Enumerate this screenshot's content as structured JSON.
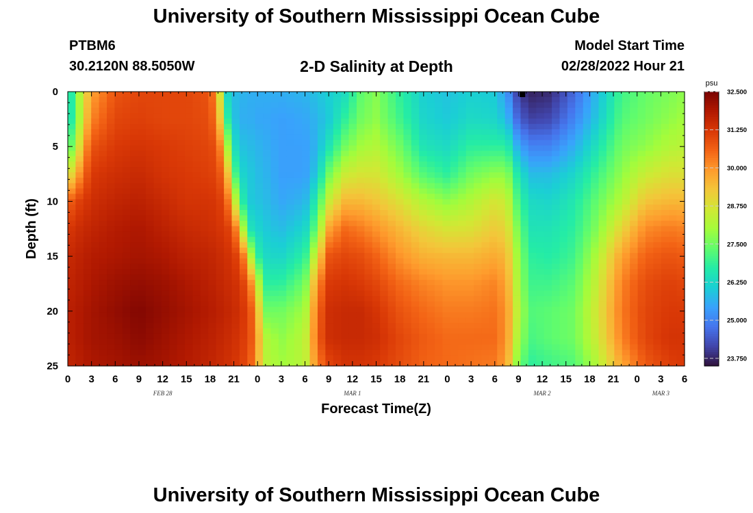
{
  "header": {
    "title": "University of Southern Mississippi Ocean Cube",
    "station_id": "PTBM6",
    "station_coords": "30.2120N  88.5050W",
    "plot_title": "2-D Salinity at Depth",
    "start_label": "Model Start Time",
    "start_value": "02/28/2022 Hour 21"
  },
  "footer": {
    "title": "University of Southern Mississippi Ocean Cube"
  },
  "chart_data": {
    "type": "heatmap",
    "title": "2-D Salinity at Depth",
    "xlabel": "Forecast Time(Z)",
    "ylabel": "Depth (ft)",
    "x_hours_from_feb28_00z": [
      0,
      78
    ],
    "x_tick_labels": [
      "0",
      "3",
      "6",
      "9",
      "12",
      "15",
      "18",
      "21",
      "0",
      "3",
      "6",
      "9",
      "12",
      "15",
      "18",
      "21",
      "0",
      "3",
      "6",
      "9",
      "12",
      "15",
      "18",
      "21",
      "0",
      "3",
      "6"
    ],
    "date_labels": [
      {
        "label": "FEB 28",
        "hour": 12
      },
      {
        "label": "MAR 1",
        "hour": 36
      },
      {
        "label": "MAR 2",
        "hour": 60
      },
      {
        "label": "MAR 3",
        "hour": 75
      }
    ],
    "ylim": [
      0,
      25
    ],
    "y_ticks": [
      0,
      5,
      10,
      15,
      20,
      25
    ],
    "y_inverted": true,
    "colorbar": {
      "unit": "psu",
      "range": [
        23.5,
        32.5
      ],
      "labels": [
        "32.500",
        "31.250",
        "30.000",
        "28.750",
        "27.500",
        "26.250",
        "25.000",
        "23.750"
      ],
      "colors": [
        "#30123b",
        "#4145ab",
        "#4675ed",
        "#39a2fc",
        "#1bcfd4",
        "#24eca6",
        "#61fc6c",
        "#a4fc3b",
        "#d1e834",
        "#f3c63a",
        "#fe9b2d",
        "#f36315",
        "#d93806",
        "#b11901",
        "#7a0402"
      ]
    },
    "surface_marker_hour": 57.5,
    "profile_depths_ft": [
      0,
      2.5,
      5,
      7.5,
      10,
      12.5,
      15,
      17.5,
      20,
      22.5,
      25
    ],
    "profiles": [
      {
        "hour": 0,
        "salinity": [
          26.0,
          26.2,
          27.0,
          28.5,
          30.5,
          31.2,
          31.5,
          31.6,
          31.7,
          31.7,
          31.6
        ]
      },
      {
        "hour": 1,
        "salinity": [
          27.5,
          27.2,
          28.0,
          29.5,
          31.0,
          31.4,
          31.6,
          31.7,
          31.8,
          31.8,
          31.7
        ]
      },
      {
        "hour": 2,
        "salinity": [
          28.8,
          29.0,
          29.8,
          30.5,
          31.2,
          31.5,
          31.7,
          31.8,
          31.9,
          31.9,
          31.8
        ]
      },
      {
        "hour": 3,
        "salinity": [
          29.8,
          30.2,
          30.8,
          31.2,
          31.4,
          31.6,
          31.8,
          31.9,
          32.0,
          32.0,
          31.9
        ]
      },
      {
        "hour": 6,
        "salinity": [
          30.8,
          31.0,
          31.2,
          31.4,
          31.6,
          31.8,
          31.9,
          32.1,
          32.2,
          32.1,
          32.0
        ]
      },
      {
        "hour": 9,
        "salinity": [
          31.0,
          31.1,
          31.3,
          31.5,
          31.7,
          31.9,
          32.0,
          32.2,
          32.4,
          32.3,
          32.1
        ]
      },
      {
        "hour": 12,
        "salinity": [
          31.0,
          31.0,
          31.2,
          31.3,
          31.5,
          31.7,
          31.9,
          32.1,
          32.2,
          32.1,
          32.0
        ]
      },
      {
        "hour": 15,
        "salinity": [
          31.0,
          31.0,
          31.1,
          31.2,
          31.3,
          31.5,
          31.7,
          31.9,
          32.0,
          31.9,
          31.8
        ]
      },
      {
        "hour": 18,
        "salinity": [
          30.8,
          30.9,
          31.0,
          31.1,
          31.3,
          31.4,
          31.6,
          31.7,
          31.8,
          31.7,
          31.6
        ]
      },
      {
        "hour": 19,
        "salinity": [
          29.5,
          30.0,
          30.8,
          31.0,
          31.2,
          31.3,
          31.5,
          31.6,
          31.7,
          31.6,
          31.5
        ]
      },
      {
        "hour": 20,
        "salinity": [
          26.3,
          27.0,
          28.5,
          30.0,
          30.9,
          31.2,
          31.4,
          31.5,
          31.6,
          31.5,
          31.4
        ]
      },
      {
        "hour": 21,
        "salinity": [
          25.8,
          25.9,
          26.4,
          27.3,
          28.8,
          30.8,
          31.2,
          31.4,
          31.5,
          31.4,
          31.3
        ]
      },
      {
        "hour": 22,
        "salinity": [
          25.7,
          25.6,
          25.9,
          26.2,
          26.8,
          28.5,
          30.8,
          31.2,
          31.3,
          31.2,
          31.1
        ]
      },
      {
        "hour": 23,
        "salinity": [
          25.6,
          25.6,
          25.8,
          26.0,
          26.0,
          26.5,
          28.5,
          30.5,
          31.0,
          31.0,
          30.8
        ]
      },
      {
        "hour": 24,
        "salinity": [
          25.6,
          25.5,
          25.7,
          25.8,
          25.9,
          26.2,
          26.8,
          28.5,
          29.5,
          29.8,
          29.6
        ]
      },
      {
        "hour": 25,
        "salinity": [
          25.6,
          25.5,
          25.6,
          25.7,
          25.8,
          26.0,
          26.3,
          26.8,
          27.5,
          28.2,
          28.3
        ]
      },
      {
        "hour": 27,
        "salinity": [
          25.6,
          25.4,
          25.4,
          25.4,
          25.5,
          25.8,
          26.2,
          26.8,
          27.5,
          27.8,
          28.0
        ]
      },
      {
        "hour": 30,
        "salinity": [
          25.7,
          25.5,
          25.4,
          25.4,
          25.7,
          26.2,
          26.8,
          27.5,
          28.0,
          28.3,
          28.3
        ]
      },
      {
        "hour": 31.5,
        "salinity": [
          25.9,
          25.7,
          25.7,
          26.0,
          26.8,
          27.5,
          28.8,
          30.0,
          30.5,
          30.6,
          30.2
        ]
      },
      {
        "hour": 33,
        "salinity": [
          26.1,
          26.0,
          26.5,
          27.5,
          28.5,
          29.8,
          30.8,
          31.2,
          31.4,
          31.4,
          31.0
        ]
      },
      {
        "hour": 35,
        "salinity": [
          26.3,
          26.8,
          27.5,
          28.5,
          29.5,
          30.5,
          31.0,
          31.3,
          31.5,
          31.5,
          31.3
        ]
      },
      {
        "hour": 37,
        "salinity": [
          27.3,
          27.5,
          28.0,
          28.7,
          29.5,
          30.3,
          30.9,
          31.2,
          31.5,
          31.5,
          31.3
        ]
      },
      {
        "hour": 39,
        "salinity": [
          27.7,
          27.8,
          28.2,
          28.7,
          29.3,
          30.0,
          30.6,
          31.0,
          31.3,
          31.4,
          31.2
        ]
      },
      {
        "hour": 42,
        "salinity": [
          26.8,
          27.0,
          27.5,
          28.0,
          28.8,
          29.5,
          30.0,
          30.5,
          30.8,
          31.0,
          30.9
        ]
      },
      {
        "hour": 45,
        "salinity": [
          26.1,
          26.2,
          26.5,
          27.2,
          28.2,
          29.0,
          29.6,
          30.2,
          30.5,
          30.7,
          30.6
        ]
      },
      {
        "hour": 48,
        "salinity": [
          25.9,
          26.0,
          26.3,
          26.8,
          27.8,
          28.7,
          29.5,
          30.0,
          30.3,
          30.5,
          30.5
        ]
      },
      {
        "hour": 51,
        "salinity": [
          26.1,
          26.3,
          26.8,
          27.5,
          28.2,
          28.8,
          29.5,
          30.0,
          30.3,
          30.5,
          30.4
        ]
      },
      {
        "hour": 54,
        "salinity": [
          26.0,
          26.2,
          26.8,
          27.8,
          28.7,
          29.2,
          29.7,
          30.2,
          30.4,
          30.5,
          30.3
        ]
      },
      {
        "hour": 55.5,
        "salinity": [
          25.3,
          25.8,
          26.8,
          27.8,
          28.5,
          29.0,
          29.5,
          29.8,
          30.0,
          30.0,
          29.8
        ]
      },
      {
        "hour": 57,
        "salinity": [
          24.0,
          24.5,
          25.5,
          26.5,
          27.0,
          27.5,
          27.8,
          28.0,
          28.2,
          28.0,
          27.5
        ]
      },
      {
        "hour": 58.5,
        "salinity": [
          23.7,
          24.1,
          25.0,
          25.8,
          26.3,
          26.5,
          26.8,
          27.0,
          27.2,
          27.1,
          26.8
        ]
      },
      {
        "hour": 61,
        "salinity": [
          23.8,
          24.2,
          25.0,
          25.8,
          26.2,
          26.5,
          26.7,
          27.0,
          27.3,
          27.3,
          27.0
        ]
      },
      {
        "hour": 64,
        "salinity": [
          24.6,
          25.0,
          25.6,
          26.2,
          26.6,
          26.8,
          27.0,
          27.3,
          27.5,
          27.5,
          27.2
        ]
      },
      {
        "hour": 67,
        "salinity": [
          25.8,
          26.0,
          26.5,
          27.0,
          27.4,
          27.7,
          28.2,
          28.5,
          28.7,
          28.6,
          28.2
        ]
      },
      {
        "hour": 70,
        "salinity": [
          27.0,
          27.2,
          27.5,
          27.8,
          28.2,
          29.0,
          29.8,
          30.2,
          30.3,
          30.2,
          29.7
        ]
      },
      {
        "hour": 73,
        "salinity": [
          27.4,
          27.5,
          27.8,
          28.5,
          29.3,
          30.1,
          30.6,
          30.9,
          31.0,
          31.0,
          30.7
        ]
      },
      {
        "hour": 76,
        "salinity": [
          27.6,
          27.8,
          28.2,
          28.8,
          29.5,
          30.3,
          30.8,
          31.1,
          31.2,
          31.3,
          31.1
        ]
      },
      {
        "hour": 78,
        "salinity": [
          27.8,
          28.0,
          28.3,
          28.8,
          29.5,
          30.2,
          30.7,
          31.0,
          31.2,
          31.3,
          31.2
        ]
      }
    ]
  }
}
